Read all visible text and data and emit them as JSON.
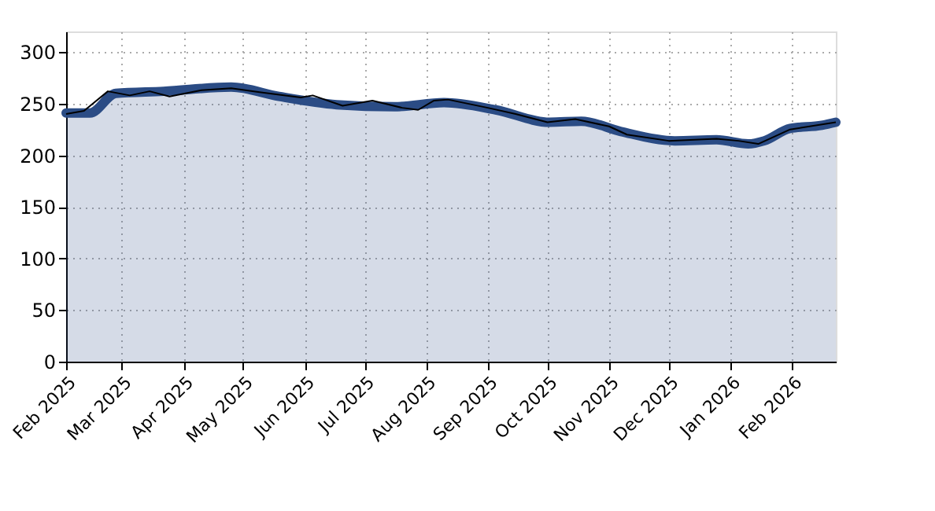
{
  "chart_data": {
    "type": "area",
    "xlim": [
      "2025-02-01",
      "2026-02-23"
    ],
    "ylim": [
      0,
      320
    ],
    "yticks": [
      0,
      50,
      100,
      150,
      200,
      250,
      300
    ],
    "xticks": [
      {
        "value": "2025-02-01",
        "label": "Feb 2025"
      },
      {
        "value": "2025-03-01",
        "label": "Mar 2025"
      },
      {
        "value": "2025-04-01",
        "label": "Apr 2025"
      },
      {
        "value": "2025-05-01",
        "label": "May 2025"
      },
      {
        "value": "2025-06-01",
        "label": "Jun 2025"
      },
      {
        "value": "2025-07-01",
        "label": "Jul 2025"
      },
      {
        "value": "2025-08-01",
        "label": "Aug 2025"
      },
      {
        "value": "2025-09-01",
        "label": "Sep 2025"
      },
      {
        "value": "2025-10-01",
        "label": "Oct 2025"
      },
      {
        "value": "2025-11-01",
        "label": "Nov 2025"
      },
      {
        "value": "2025-12-01",
        "label": "Dec 2025"
      },
      {
        "value": "2026-01-01",
        "label": "Jan 2026"
      },
      {
        "value": "2026-02-01",
        "label": "Feb 2026"
      }
    ],
    "grid": true,
    "series": [
      {
        "color": "#2b4c85",
        "x": [
          "2025-02-01",
          "2025-02-13",
          "2025-02-26",
          "2025-03-22",
          "2025-04-25",
          "2025-05-19",
          "2025-06-17",
          "2025-07-16",
          "2025-08-10",
          "2025-09-05",
          "2025-10-02",
          "2025-10-18",
          "2025-11-07",
          "2025-12-04",
          "2025-12-25",
          "2026-01-10",
          "2026-01-18",
          "2026-01-31",
          "2026-02-16",
          "2026-02-23"
        ],
        "values": [
          241,
          241,
          260,
          262,
          266,
          257,
          249,
          247,
          251,
          244,
          232,
          233,
          223,
          214,
          215,
          211,
          214,
          226,
          229,
          232
        ]
      },
      {
        "type": "line",
        "color": "#000000",
        "x": [
          "2025-02-01",
          "2025-02-10",
          "2025-02-22",
          "2025-03-05",
          "2025-03-15",
          "2025-03-25",
          "2025-04-10",
          "2025-04-25",
          "2025-05-10",
          "2025-05-30",
          "2025-06-05",
          "2025-06-20",
          "2025-07-05",
          "2025-07-20",
          "2025-07-28",
          "2025-08-05",
          "2025-08-12",
          "2025-09-01",
          "2025-09-15",
          "2025-10-01",
          "2025-10-15",
          "2025-11-01",
          "2025-11-10",
          "2025-12-01",
          "2025-12-25",
          "2026-01-05",
          "2026-01-15",
          "2026-01-31",
          "2026-02-23"
        ],
        "values": [
          240,
          243,
          262,
          258,
          262,
          257,
          263,
          265,
          261,
          256,
          258,
          248,
          253,
          246,
          244,
          253,
          254,
          246,
          240,
          232,
          235,
          228,
          220,
          214,
          216,
          214,
          211,
          225,
          232
        ]
      }
    ]
  }
}
